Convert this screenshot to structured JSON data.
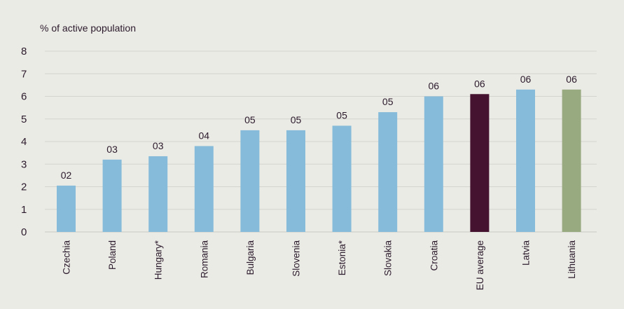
{
  "chart_data": {
    "type": "bar",
    "title": "",
    "ylabel": "% of active population",
    "xlabel": "",
    "ylim": [
      0,
      8
    ],
    "yticks": [
      "0",
      "1",
      "2",
      "3",
      "4",
      "5",
      "6",
      "7",
      "8"
    ],
    "grid": true,
    "categories": [
      "Czechia",
      "Poland",
      "Hungary*",
      "Romania",
      "Bulgaria",
      "Slovenia",
      "Estonia*",
      "Slovakia",
      "Croatia",
      "EU average",
      "Latvia",
      "Lithuania"
    ],
    "values": [
      2.05,
      3.2,
      3.35,
      3.8,
      4.5,
      4.5,
      4.7,
      5.3,
      6.0,
      6.1,
      6.3,
      6.3
    ],
    "data_labels": [
      "02",
      "03",
      "03",
      "04",
      "05",
      "05",
      "05",
      "05",
      "06",
      "06",
      "06",
      "06"
    ],
    "colors": [
      "#86bcd9",
      "#86bcd9",
      "#86bcd9",
      "#86bcd9",
      "#86bcd9",
      "#86bcd9",
      "#86bcd9",
      "#86bcd9",
      "#86bcd9",
      "#45122f",
      "#86bcd9",
      "#98aa80"
    ]
  }
}
